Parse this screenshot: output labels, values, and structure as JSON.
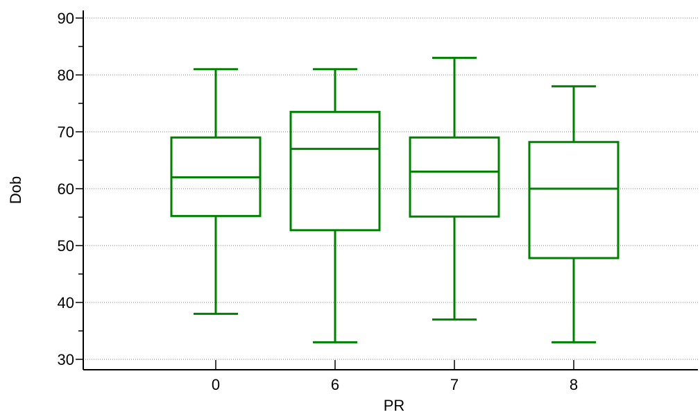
{
  "chart_data": {
    "type": "box",
    "title": "",
    "xlabel": "PR",
    "ylabel": "Dob",
    "categories": [
      "0",
      "6",
      "7",
      "8"
    ],
    "ylim": [
      28,
      92
    ],
    "yticks": [
      30,
      40,
      50,
      60,
      70,
      80,
      90
    ],
    "grid": true,
    "color": "#008000",
    "boxes": [
      {
        "category": "0",
        "min": 38,
        "q1": 55.2,
        "median": 62,
        "q3": 69,
        "max": 81
      },
      {
        "category": "6",
        "min": 33,
        "q1": 52.7,
        "median": 67,
        "q3": 73.5,
        "max": 81
      },
      {
        "category": "7",
        "min": 37,
        "q1": 55.1,
        "median": 63,
        "q3": 69,
        "max": 83
      },
      {
        "category": "8",
        "min": 33,
        "q1": 47.8,
        "median": 60,
        "q3": 68.2,
        "max": 78
      }
    ]
  }
}
